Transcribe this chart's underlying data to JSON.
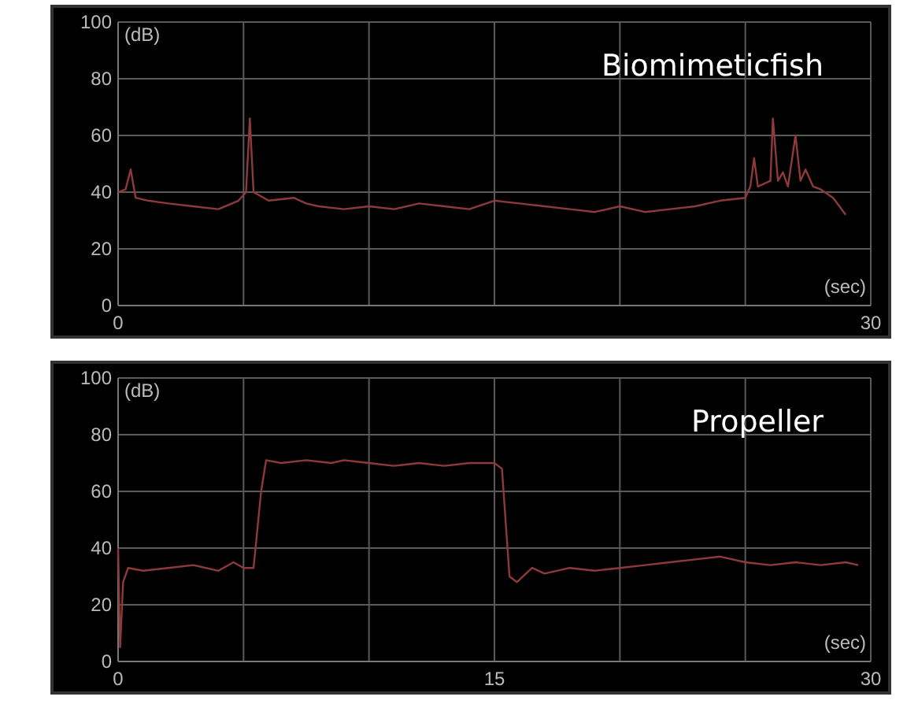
{
  "chart_data": [
    {
      "type": "line",
      "title": "Biomimeticfish",
      "xlabel": "(sec)",
      "ylabel": "(dB)",
      "xlim": [
        0,
        30
      ],
      "xticks": [
        0,
        {
          "value": 5,
          "label": null
        },
        {
          "value": 10,
          "label": null
        },
        {
          "value": 15,
          "label": null
        },
        {
          "value": 20,
          "label": null
        },
        {
          "value": 25,
          "label": null
        },
        30
      ],
      "ylim": [
        0,
        100
      ],
      "yticks": [
        0,
        20,
        40,
        60,
        80,
        100
      ],
      "grid": true,
      "line_style": "solid",
      "series": [
        {
          "color": "#8e3a3a",
          "x": [
            0,
            0.3,
            0.5,
            0.7,
            1.2,
            2,
            3,
            4,
            4.8,
            5.1,
            5.25,
            5.4,
            6,
            7,
            7.5,
            8,
            9,
            10,
            11,
            12,
            13,
            14,
            15,
            16,
            17,
            18,
            19,
            20,
            21,
            22,
            23,
            24,
            25,
            25.2,
            25.35,
            25.5,
            26,
            26.1,
            26.3,
            26.5,
            26.7,
            27,
            27.2,
            27.4,
            27.7,
            28,
            28.5,
            29
          ],
          "values": [
            40,
            41,
            48,
            38,
            37,
            36,
            35,
            34,
            37,
            40,
            66,
            40,
            37,
            38,
            36,
            35,
            34,
            35,
            34,
            36,
            35,
            34,
            37,
            36,
            35,
            34,
            33,
            35,
            33,
            34,
            35,
            37,
            38,
            42,
            52,
            42,
            44,
            66,
            44,
            47,
            42,
            60,
            44,
            48,
            42,
            41,
            38,
            32
          ]
        }
      ]
    },
    {
      "type": "line",
      "title": "Propeller",
      "xlabel": "(sec)",
      "ylabel": "(dB)",
      "xlim": [
        0,
        30
      ],
      "xticks": [
        0,
        {
          "value": 5,
          "label": null
        },
        {
          "value": 10,
          "label": null
        },
        15,
        {
          "value": 20,
          "label": null
        },
        {
          "value": 25,
          "label": null
        },
        30
      ],
      "ylim": [
        0,
        100
      ],
      "yticks": [
        0,
        20,
        40,
        60,
        80,
        100
      ],
      "grid": true,
      "line_style": "solid",
      "series": [
        {
          "color": "#8e3a3a",
          "x": [
            0,
            0.08,
            0.2,
            0.4,
            1,
            2,
            3,
            4,
            4.6,
            5,
            5.4,
            5.7,
            5.9,
            6.5,
            7.5,
            8.5,
            9,
            10,
            11,
            12,
            13,
            14,
            15,
            15.3,
            15.6,
            15.9,
            16.5,
            17,
            18,
            19,
            20,
            21,
            22,
            23,
            24,
            25,
            26,
            27,
            28,
            29,
            29.5
          ],
          "values": [
            40,
            5,
            28,
            33,
            32,
            33,
            34,
            32,
            35,
            33,
            33,
            60,
            71,
            70,
            71,
            70,
            71,
            70,
            69,
            70,
            69,
            70,
            70,
            68,
            30,
            28,
            33,
            31,
            33,
            32,
            33,
            34,
            35,
            36,
            37,
            35,
            34,
            35,
            34,
            35,
            34
          ]
        }
      ]
    }
  ]
}
